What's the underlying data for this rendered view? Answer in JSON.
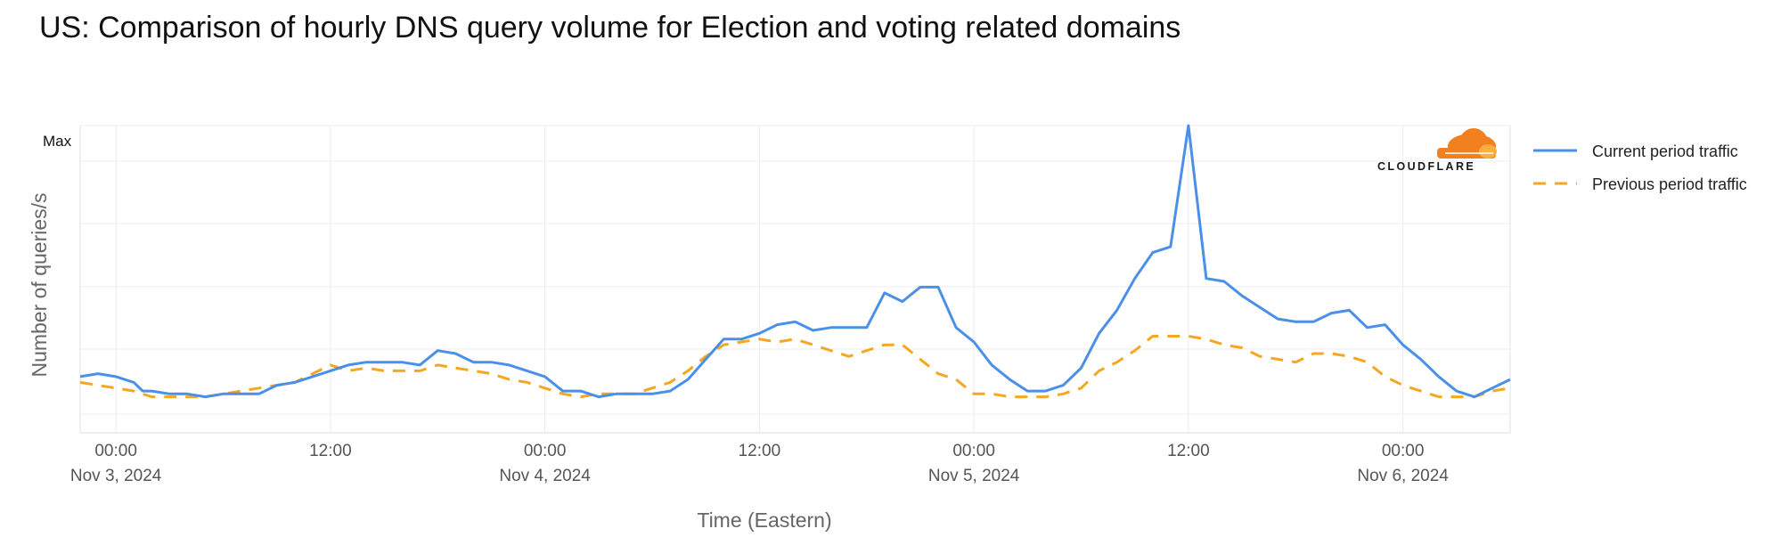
{
  "chart_data": {
    "type": "line",
    "title": "US: Comparison of hourly DNS query volume for Election and voting related domains",
    "xlabel": "Time (Eastern)",
    "ylabel": "Number of queries/s",
    "y_max_label": "Max",
    "ylim": [
      0,
      1
    ],
    "x_ticks": [
      {
        "hour": 0,
        "time": "00:00",
        "date": "Nov 3, 2024"
      },
      {
        "hour": 12,
        "time": "12:00",
        "date": ""
      },
      {
        "hour": 24,
        "time": "00:00",
        "date": "Nov 4, 2024"
      },
      {
        "hour": 36,
        "time": "12:00",
        "date": ""
      },
      {
        "hour": 48,
        "time": "00:00",
        "date": "Nov 5, 2024"
      },
      {
        "hour": 60,
        "time": "12:00",
        "date": ""
      },
      {
        "hour": 72,
        "time": "00:00",
        "date": "Nov 6, 2024"
      }
    ],
    "xlim": [
      -2,
      78
    ],
    "series": [
      {
        "name": "Current period traffic",
        "color": "#4a90e8",
        "dash": "solid",
        "points": [
          [
            -2,
            0.13
          ],
          [
            -1,
            0.14
          ],
          [
            0,
            0.13
          ],
          [
            1,
            0.11
          ],
          [
            1.5,
            0.08
          ],
          [
            2,
            0.08
          ],
          [
            3,
            0.07
          ],
          [
            4,
            0.07
          ],
          [
            5,
            0.06
          ],
          [
            6,
            0.07
          ],
          [
            7,
            0.07
          ],
          [
            8,
            0.07
          ],
          [
            9,
            0.1
          ],
          [
            10,
            0.11
          ],
          [
            11,
            0.13
          ],
          [
            12,
            0.15
          ],
          [
            13,
            0.17
          ],
          [
            14,
            0.18
          ],
          [
            15,
            0.18
          ],
          [
            16,
            0.18
          ],
          [
            17,
            0.17
          ],
          [
            18,
            0.22
          ],
          [
            19,
            0.21
          ],
          [
            20,
            0.18
          ],
          [
            21,
            0.18
          ],
          [
            22,
            0.17
          ],
          [
            23,
            0.15
          ],
          [
            24,
            0.13
          ],
          [
            25,
            0.08
          ],
          [
            26,
            0.08
          ],
          [
            27,
            0.06
          ],
          [
            28,
            0.07
          ],
          [
            29,
            0.07
          ],
          [
            30,
            0.07
          ],
          [
            31,
            0.08
          ],
          [
            32,
            0.12
          ],
          [
            33,
            0.19
          ],
          [
            34,
            0.26
          ],
          [
            35,
            0.26
          ],
          [
            36,
            0.28
          ],
          [
            37,
            0.31
          ],
          [
            38,
            0.32
          ],
          [
            39,
            0.29
          ],
          [
            40,
            0.3
          ],
          [
            41,
            0.3
          ],
          [
            42,
            0.3
          ],
          [
            43,
            0.42
          ],
          [
            44,
            0.39
          ],
          [
            45,
            0.44
          ],
          [
            46,
            0.44
          ],
          [
            47,
            0.3
          ],
          [
            48,
            0.25
          ],
          [
            49,
            0.17
          ],
          [
            50,
            0.12
          ],
          [
            51,
            0.08
          ],
          [
            52,
            0.08
          ],
          [
            53,
            0.1
          ],
          [
            54,
            0.16
          ],
          [
            55,
            0.28
          ],
          [
            56,
            0.36
          ],
          [
            57,
            0.47
          ],
          [
            58,
            0.56
          ],
          [
            59,
            0.58
          ],
          [
            60,
            1.0
          ],
          [
            61,
            0.47
          ],
          [
            62,
            0.46
          ],
          [
            63,
            0.41
          ],
          [
            64,
            0.37
          ],
          [
            65,
            0.33
          ],
          [
            66,
            0.32
          ],
          [
            67,
            0.32
          ],
          [
            68,
            0.35
          ],
          [
            69,
            0.36
          ],
          [
            70,
            0.3
          ],
          [
            71,
            0.31
          ],
          [
            72,
            0.24
          ],
          [
            73,
            0.19
          ],
          [
            74,
            0.13
          ],
          [
            75,
            0.08
          ],
          [
            76,
            0.06
          ],
          [
            77,
            0.09
          ],
          [
            78,
            0.12
          ]
        ]
      },
      {
        "name": "Previous period traffic",
        "color": "#f5a623",
        "dash": "dashed",
        "points": [
          [
            -2,
            0.11
          ],
          [
            -1,
            0.1
          ],
          [
            0,
            0.09
          ],
          [
            1,
            0.08
          ],
          [
            2,
            0.06
          ],
          [
            3,
            0.06
          ],
          [
            4,
            0.06
          ],
          [
            5,
            0.06
          ],
          [
            6,
            0.07
          ],
          [
            7,
            0.08
          ],
          [
            8,
            0.09
          ],
          [
            9,
            0.1
          ],
          [
            10,
            0.11
          ],
          [
            11,
            0.14
          ],
          [
            12,
            0.17
          ],
          [
            13,
            0.15
          ],
          [
            14,
            0.16
          ],
          [
            15,
            0.15
          ],
          [
            16,
            0.15
          ],
          [
            17,
            0.15
          ],
          [
            18,
            0.17
          ],
          [
            19,
            0.16
          ],
          [
            20,
            0.15
          ],
          [
            21,
            0.14
          ],
          [
            22,
            0.12
          ],
          [
            23,
            0.11
          ],
          [
            24,
            0.09
          ],
          [
            25,
            0.07
          ],
          [
            26,
            0.06
          ],
          [
            27,
            0.07
          ],
          [
            28,
            0.07
          ],
          [
            29,
            0.07
          ],
          [
            30,
            0.09
          ],
          [
            31,
            0.11
          ],
          [
            32,
            0.15
          ],
          [
            33,
            0.2
          ],
          [
            34,
            0.24
          ],
          [
            35,
            0.25
          ],
          [
            36,
            0.26
          ],
          [
            37,
            0.25
          ],
          [
            38,
            0.26
          ],
          [
            39,
            0.24
          ],
          [
            40,
            0.22
          ],
          [
            41,
            0.2
          ],
          [
            42,
            0.22
          ],
          [
            43,
            0.24
          ],
          [
            44,
            0.24
          ],
          [
            45,
            0.19
          ],
          [
            46,
            0.14
          ],
          [
            47,
            0.12
          ],
          [
            48,
            0.07
          ],
          [
            49,
            0.07
          ],
          [
            50,
            0.06
          ],
          [
            51,
            0.06
          ],
          [
            52,
            0.06
          ],
          [
            53,
            0.07
          ],
          [
            54,
            0.09
          ],
          [
            55,
            0.15
          ],
          [
            56,
            0.18
          ],
          [
            57,
            0.22
          ],
          [
            58,
            0.27
          ],
          [
            59,
            0.27
          ],
          [
            60,
            0.27
          ],
          [
            61,
            0.26
          ],
          [
            62,
            0.24
          ],
          [
            63,
            0.23
          ],
          [
            64,
            0.2
          ],
          [
            65,
            0.19
          ],
          [
            66,
            0.18
          ],
          [
            67,
            0.21
          ],
          [
            68,
            0.21
          ],
          [
            69,
            0.2
          ],
          [
            70,
            0.18
          ],
          [
            71,
            0.13
          ],
          [
            72,
            0.1
          ],
          [
            73,
            0.08
          ],
          [
            74,
            0.06
          ],
          [
            75,
            0.06
          ],
          [
            76,
            0.06
          ],
          [
            77,
            0.08
          ],
          [
            78,
            0.09
          ]
        ]
      }
    ],
    "legend_position": "right",
    "grid": true
  },
  "branding": {
    "logo_text": "CLOUDFLARE",
    "logo_color": "#f38020"
  }
}
